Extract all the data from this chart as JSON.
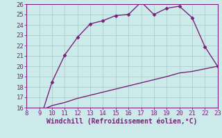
{
  "line1_x": [
    8,
    9,
    9.3,
    10,
    11,
    12,
    13,
    14,
    15,
    16,
    17,
    18,
    19,
    20,
    21,
    22,
    23
  ],
  "line1_y": [
    15.9,
    15.85,
    15.8,
    18.5,
    21.1,
    22.8,
    24.1,
    24.4,
    24.9,
    25.0,
    26.2,
    25.0,
    25.6,
    25.8,
    24.7,
    21.9,
    20.0
  ],
  "line2_x": [
    8,
    9,
    9.3,
    10,
    11,
    12,
    13,
    14,
    15,
    16,
    17,
    18,
    19,
    20,
    21,
    22,
    23
  ],
  "line2_y": [
    15.9,
    15.85,
    15.83,
    16.2,
    16.5,
    16.9,
    17.2,
    17.5,
    17.8,
    18.1,
    18.4,
    18.7,
    19.0,
    19.35,
    19.5,
    19.75,
    20.0
  ],
  "line_color": "#7a1f7a",
  "bg_color": "#cceaea",
  "grid_color": "#aacece",
  "xlabel": "Windchill (Refroidissement éolien,°C)",
  "xlim": [
    8,
    23
  ],
  "ylim": [
    16,
    26
  ],
  "xticks": [
    8,
    9,
    10,
    11,
    12,
    13,
    14,
    15,
    16,
    17,
    18,
    19,
    20,
    21,
    22,
    23
  ],
  "yticks": [
    16,
    17,
    18,
    19,
    20,
    21,
    22,
    23,
    24,
    25,
    26
  ],
  "markersize": 2.5,
  "linewidth": 1.0,
  "tick_color": "#7a1f7a",
  "font_size": 6.5
}
